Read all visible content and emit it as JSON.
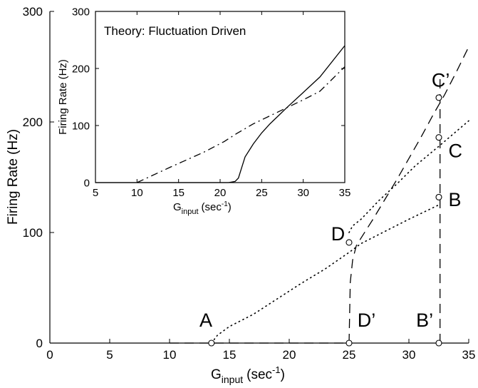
{
  "chart_data": [
    {
      "type": "line",
      "xlabel": "G",
      "xlabel_sub": "input",
      "xlabel_unit": "(sec",
      "xlabel_unit_sup": "-1",
      "xlabel_unit_close": ")",
      "ylabel": "Firing Rate (Hz)",
      "xlim": [
        0,
        35
      ],
      "ylim": [
        0,
        300
      ],
      "xticks": [
        0,
        5,
        10,
        15,
        20,
        25,
        30,
        35
      ],
      "yticks": [
        0,
        100,
        200,
        300
      ],
      "grid": false,
      "series": [
        {
          "style": "dotted",
          "x": [
            13.5,
            14,
            15,
            17,
            19,
            21,
            23,
            25,
            26,
            28,
            30,
            32.5
          ],
          "y": [
            0,
            7,
            15,
            26,
            40,
            54,
            67,
            82,
            90,
            101,
            112,
            125
          ]
        },
        {
          "style": "dotted",
          "x": [
            25,
            25.3,
            26,
            27.5,
            29,
            30.5,
            32.5,
            35
          ],
          "y": [
            100,
            106,
            112,
            129,
            144,
            160,
            178,
            201
          ]
        },
        {
          "style": "dashed",
          "x": [
            10,
            15,
            20,
            25,
            25.1,
            25.3,
            25.6,
            26,
            27,
            28,
            29,
            30,
            31,
            32,
            33,
            34,
            35
          ],
          "y": [
            0,
            0,
            0,
            0,
            55,
            75,
            88,
            95,
            112,
            130,
            148,
            167,
            186,
            206,
            225,
            246,
            268
          ]
        },
        {
          "style": "dashed",
          "x": [
            32.6,
            32.6
          ],
          "y": [
            0,
            240
          ]
        }
      ],
      "markers": [
        {
          "x": 13.5,
          "y": 0
        },
        {
          "x": 25,
          "y": 0
        },
        {
          "x": 32.5,
          "y": 0
        },
        {
          "x": 25,
          "y": 91
        },
        {
          "x": 32.5,
          "y": 132
        },
        {
          "x": 32.5,
          "y": 186
        },
        {
          "x": 32.5,
          "y": 222
        }
      ],
      "annotations": [
        {
          "text": "A",
          "x": 12.5,
          "y": 15,
          "size": 27
        },
        {
          "text": "D’",
          "x": 25.7,
          "y": 15,
          "size": 27
        },
        {
          "text": "B’",
          "x": 30.6,
          "y": 15,
          "size": 27
        },
        {
          "text": "D",
          "x": 23.5,
          "y": 93,
          "size": 27
        },
        {
          "text": "B",
          "x": 33.3,
          "y": 124,
          "size": 27
        },
        {
          "text": "C",
          "x": 33.3,
          "y": 168,
          "size": 27
        },
        {
          "text": "C’",
          "x": 31.9,
          "y": 232,
          "size": 27
        }
      ]
    },
    {
      "type": "line",
      "title": "Theory: Fluctuation   Driven",
      "xlabel": "G",
      "xlabel_sub": "input",
      "xlabel_unit": "(sec",
      "xlabel_unit_sup": "-1",
      "xlabel_unit_close": ")",
      "ylabel": "Firing Rate (Hz)",
      "xlim": [
        5,
        35
      ],
      "ylim": [
        0,
        300
      ],
      "xticks": [
        5,
        10,
        15,
        20,
        25,
        30,
        35
      ],
      "yticks": [
        0,
        100,
        200,
        300
      ],
      "grid": false,
      "series": [
        {
          "style": "solid",
          "x": [
            5,
            21,
            21.8,
            22.2,
            22.5,
            23,
            24,
            25,
            26,
            27,
            28,
            30,
            32,
            35
          ],
          "y": [
            0,
            0,
            2,
            8,
            22,
            45,
            68,
            87,
            103,
            117,
            131,
            158,
            185,
            240
          ]
        },
        {
          "style": "dashdot",
          "x": [
            10,
            14,
            18,
            20.5,
            22,
            24,
            26,
            28,
            30,
            32,
            35
          ],
          "y": [
            0,
            27,
            53,
            72,
            86,
            103,
            117,
            131,
            145,
            160,
            203
          ]
        }
      ]
    }
  ]
}
